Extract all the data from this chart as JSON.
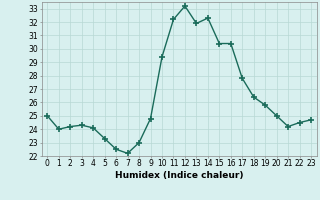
{
  "x": [
    0,
    1,
    2,
    3,
    4,
    5,
    6,
    7,
    8,
    9,
    10,
    11,
    12,
    13,
    14,
    15,
    16,
    17,
    18,
    19,
    20,
    21,
    22,
    23
  ],
  "y": [
    25.0,
    24.0,
    24.2,
    24.3,
    24.1,
    23.3,
    22.5,
    22.2,
    23.0,
    24.8,
    29.4,
    32.2,
    33.2,
    31.9,
    32.3,
    30.4,
    30.4,
    27.8,
    26.4,
    25.8,
    25.0,
    24.2,
    24.5,
    24.7
  ],
  "line_color": "#1a6b5a",
  "marker": "+",
  "marker_size": 4,
  "marker_lw": 1.2,
  "bg_color": "#d8f0ef",
  "grid_color": "#b8d8d4",
  "xlabel": "Humidex (Indice chaleur)",
  "xlim": [
    -0.5,
    23.5
  ],
  "ylim": [
    22,
    33.5
  ],
  "yticks": [
    22,
    23,
    24,
    25,
    26,
    27,
    28,
    29,
    30,
    31,
    32,
    33
  ],
  "xticks": [
    0,
    1,
    2,
    3,
    4,
    5,
    6,
    7,
    8,
    9,
    10,
    11,
    12,
    13,
    14,
    15,
    16,
    17,
    18,
    19,
    20,
    21,
    22,
    23
  ],
  "xlabel_fontsize": 6.5,
  "tick_fontsize": 5.5,
  "linewidth": 1.0
}
